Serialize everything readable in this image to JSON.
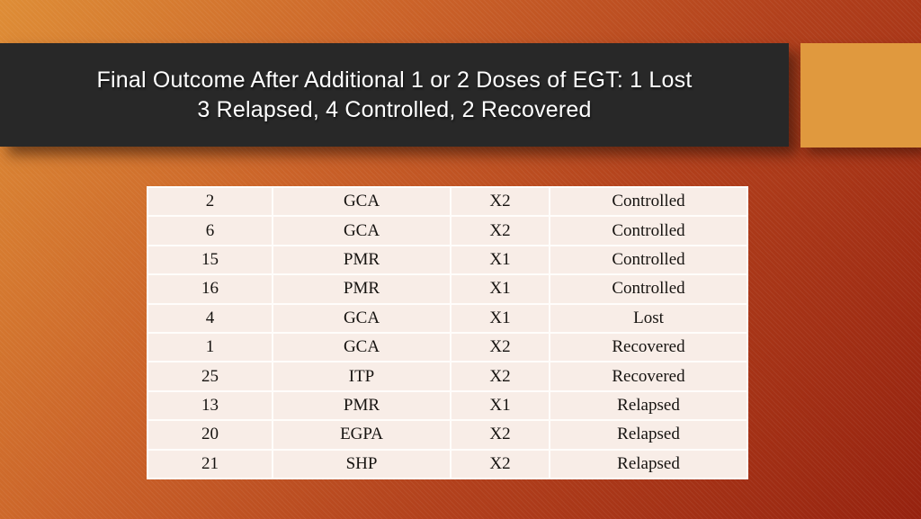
{
  "title": {
    "line1": "Final Outcome After Additional 1 or 2 Doses of EGT: 1 Lost",
    "line2": "3 Relapsed, 4 Controlled, 2 Recovered"
  },
  "outcome_table": {
    "rows": [
      [
        "2",
        "GCA",
        "X2",
        "Controlled"
      ],
      [
        "6",
        "GCA",
        "X2",
        "Controlled"
      ],
      [
        "15",
        "PMR",
        "X1",
        "Controlled"
      ],
      [
        "16",
        "PMR",
        "X1",
        "Controlled"
      ],
      [
        "4",
        "GCA",
        "X1",
        "Lost"
      ],
      [
        "1",
        "GCA",
        "X2",
        "Recovered"
      ],
      [
        "25",
        "ITP",
        "X2",
        "Recovered"
      ],
      [
        "13",
        "PMR",
        "X1",
        "Relapsed"
      ],
      [
        "20",
        "EGPA",
        "X2",
        "Relapsed"
      ],
      [
        "21",
        "SHP",
        "X2",
        "Relapsed"
      ]
    ]
  },
  "colors": {
    "background_top_left": "#DE8D36",
    "background_bottom_right": "#96220F",
    "banner_background": "#282828",
    "accent_rectangle": "#E0993E",
    "table_background": "#F8EDE7",
    "table_grid_lines": "#FFFDFB",
    "title_text": "#FFFFFF",
    "table_text": "#161310"
  }
}
